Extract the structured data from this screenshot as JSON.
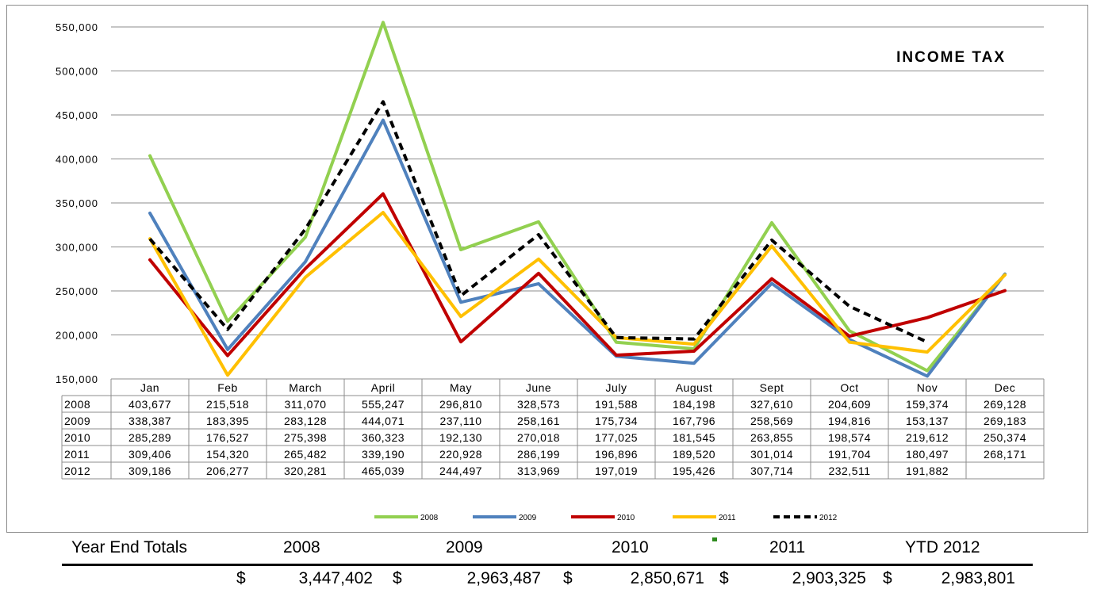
{
  "chart_data": {
    "type": "line",
    "title": "INCOME TAX",
    "categories": [
      "Jan",
      "Feb",
      "March",
      "April",
      "May",
      "June",
      "July",
      "August",
      "Sept",
      "Oct",
      "Nov",
      "Dec"
    ],
    "ylim": [
      150000,
      550000
    ],
    "yticks": [
      "150,000",
      "200,000",
      "250,000",
      "300,000",
      "350,000",
      "400,000",
      "450,000",
      "500,000",
      "550,000"
    ],
    "grid": true,
    "legend_position": "bottom",
    "series": [
      {
        "name": "2008",
        "color": "#92d050",
        "dash": false,
        "values": [
          403677,
          215518,
          311070,
          555247,
          296810,
          328573,
          191588,
          184198,
          327610,
          204609,
          159374,
          269128
        ],
        "labels": [
          "403,677",
          "215,518",
          "311,070",
          "555,247",
          "296,810",
          "328,573",
          "191,588",
          "184,198",
          "327,610",
          "204,609",
          "159,374",
          "269,128"
        ]
      },
      {
        "name": "2009",
        "color": "#4f81bd",
        "dash": false,
        "values": [
          338387,
          183395,
          283128,
          444071,
          237110,
          258161,
          175734,
          167796,
          258569,
          194816,
          153137,
          269183
        ],
        "labels": [
          "338,387",
          "183,395",
          "283,128",
          "444,071",
          "237,110",
          "258,161",
          "175,734",
          "167,796",
          "258,569",
          "194,816",
          "153,137",
          "269,183"
        ]
      },
      {
        "name": "2010",
        "color": "#c00000",
        "dash": false,
        "values": [
          285289,
          176527,
          275398,
          360323,
          192130,
          270018,
          177025,
          181545,
          263855,
          198574,
          219612,
          250374
        ],
        "labels": [
          "285,289",
          "176,527",
          "275,398",
          "360,323",
          "192,130",
          "270,018",
          "177,025",
          "181,545",
          "263,855",
          "198,574",
          "219,612",
          "250,374"
        ]
      },
      {
        "name": "2011",
        "color": "#ffc000",
        "dash": false,
        "values": [
          309406,
          154320,
          265482,
          339190,
          220928,
          286199,
          196896,
          189520,
          301014,
          191704,
          180497,
          268171
        ],
        "labels": [
          "309,406",
          "154,320",
          "265,482",
          "339,190",
          "220,928",
          "286,199",
          "196,896",
          "189,520",
          "301,014",
          "191,704",
          "180,497",
          "268,171"
        ]
      },
      {
        "name": "2012",
        "color": "#000000",
        "dash": true,
        "values": [
          309186,
          206277,
          320281,
          465039,
          244497,
          313969,
          197019,
          195426,
          307714,
          232511,
          191882,
          null
        ],
        "labels": [
          "309,186",
          "206,277",
          "320,281",
          "465,039",
          "244,497",
          "313,969",
          "197,019",
          "195,426",
          "307,714",
          "232,511",
          "191,882",
          ""
        ]
      }
    ]
  },
  "totals": {
    "header_label": "Year End Totals",
    "columns": [
      {
        "header": "2008",
        "currency": "$",
        "value": "3,447,402"
      },
      {
        "header": "2009",
        "currency": "$",
        "value": "2,963,487"
      },
      {
        "header": "2010",
        "currency": "$",
        "value": "2,850,671"
      },
      {
        "header": "2011",
        "currency": "$",
        "value": "2,903,325"
      },
      {
        "header": "YTD 2012",
        "currency": "$",
        "value": "2,983,801"
      }
    ]
  }
}
